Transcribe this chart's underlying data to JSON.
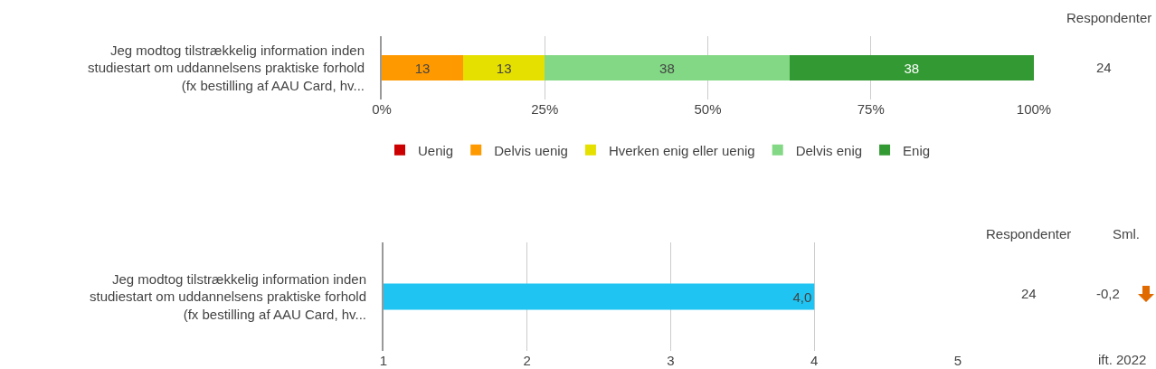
{
  "chart_data": [
    {
      "type": "bar",
      "orientation": "horizontal",
      "stacked": true,
      "categories": [
        "Jeg modtog tilstrækkelig information inden studiestart om uddannelsens praktiske forhold (fx bestilling af AAU Card, hv..."
      ],
      "series": [
        {
          "name": "Uenig",
          "color": "#cc0000",
          "values": [
            0
          ],
          "value_labels": [
            null
          ]
        },
        {
          "name": "Delvis uenig",
          "color": "#ff9900",
          "values": [
            12.5
          ],
          "value_labels": [
            "13"
          ]
        },
        {
          "name": "Hverken enig eller uenig",
          "color": "#e6e000",
          "values": [
            12.5
          ],
          "value_labels": [
            "13"
          ]
        },
        {
          "name": "Delvis enig",
          "color": "#82d884",
          "values": [
            37.5
          ],
          "value_labels": [
            "38"
          ]
        },
        {
          "name": "Enig",
          "color": "#339933",
          "values": [
            37.5
          ],
          "value_labels": [
            "38"
          ]
        }
      ],
      "xlim": [
        0,
        100
      ],
      "xticks": [
        {
          "value": 0,
          "label": "0%"
        },
        {
          "value": 25,
          "label": "25%"
        },
        {
          "value": 50,
          "label": "50%"
        },
        {
          "value": 75,
          "label": "75%"
        },
        {
          "value": 100,
          "label": "100%"
        }
      ],
      "grid": "x",
      "legend": "bottom",
      "annotations": [
        "Respondenter",
        "24"
      ]
    },
    {
      "type": "bar",
      "orientation": "horizontal",
      "categories": [
        "Jeg modtog tilstrækkelig information inden studiestart om uddannelsens praktiske forhold (fx bestilling af AAU Card, hv..."
      ],
      "values": [
        4
      ],
      "value_labels": [
        "4,0"
      ],
      "color": "#1fc4f2",
      "xlim": [
        1,
        5
      ],
      "xticks": [
        1,
        2,
        3,
        4,
        5
      ],
      "grid": "x",
      "legend": false,
      "annotations": [
        "Respondenter",
        "Sml.",
        "24",
        "-0,2",
        "ift. 2022"
      ]
    }
  ]
}
